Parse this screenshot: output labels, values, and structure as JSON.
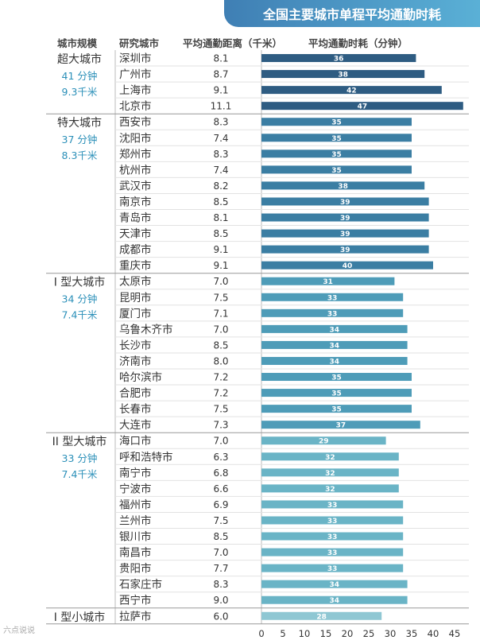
{
  "chart_data": {
    "type": "bar",
    "title": "全国主要城市单程平均通勤时耗",
    "columns": {
      "category": "城市规模",
      "city": "研究城市",
      "distance": "平均通勤距离（千米）",
      "time": "平均通勤时耗（分钟）"
    },
    "x_ticks": [
      0,
      5,
      10,
      15,
      20,
      25,
      30,
      35,
      40,
      45
    ],
    "xlim": [
      0,
      45
    ],
    "groups": [
      {
        "name": "超大城市",
        "avg_time": "41 分钟",
        "avg_distance": "9.3千米",
        "color": "#2e5c82",
        "cities": [
          {
            "name": "深圳市",
            "distance": "8.1",
            "time": 36
          },
          {
            "name": "广州市",
            "distance": "8.7",
            "time": 38
          },
          {
            "name": "上海市",
            "distance": "9.1",
            "time": 42
          },
          {
            "name": "北京市",
            "distance": "11.1",
            "time": 47
          }
        ]
      },
      {
        "name": "特大城市",
        "avg_time": "37 分钟",
        "avg_distance": "8.3千米",
        "color": "#3b7ea3",
        "cities": [
          {
            "name": "西安市",
            "distance": "8.3",
            "time": 35
          },
          {
            "name": "沈阳市",
            "distance": "7.4",
            "time": 35
          },
          {
            "name": "郑州市",
            "distance": "8.3",
            "time": 35
          },
          {
            "name": "杭州市",
            "distance": "7.4",
            "time": 35
          },
          {
            "name": "武汉市",
            "distance": "8.2",
            "time": 38
          },
          {
            "name": "南京市",
            "distance": "8.5",
            "time": 39
          },
          {
            "name": "青岛市",
            "distance": "8.1",
            "time": 39
          },
          {
            "name": "天津市",
            "distance": "8.5",
            "time": 39
          },
          {
            "name": "成都市",
            "distance": "9.1",
            "time": 39
          },
          {
            "name": "重庆市",
            "distance": "9.1",
            "time": 40
          }
        ]
      },
      {
        "name": "I 型大城市",
        "avg_time": "34 分钟",
        "avg_distance": "7.4千米",
        "color": "#4e9cb8",
        "cities": [
          {
            "name": "太原市",
            "distance": "7.0",
            "time": 31
          },
          {
            "name": "昆明市",
            "distance": "7.5",
            "time": 33
          },
          {
            "name": "厦门市",
            "distance": "7.1",
            "time": 33
          },
          {
            "name": "乌鲁木齐市",
            "distance": "7.0",
            "time": 34
          },
          {
            "name": "长沙市",
            "distance": "8.5",
            "time": 34
          },
          {
            "name": "济南市",
            "distance": "8.0",
            "time": 34
          },
          {
            "name": "哈尔滨市",
            "distance": "7.2",
            "time": 35
          },
          {
            "name": "合肥市",
            "distance": "7.2",
            "time": 35
          },
          {
            "name": "长春市",
            "distance": "7.5",
            "time": 35
          },
          {
            "name": "大连市",
            "distance": "7.3",
            "time": 37
          }
        ]
      },
      {
        "name": "II 型大城市",
        "avg_time": "33 分钟",
        "avg_distance": "7.4千米",
        "color": "#6ab4c6",
        "cities": [
          {
            "name": "海口市",
            "distance": "7.0",
            "time": 29
          },
          {
            "name": "呼和浩特市",
            "distance": "6.3",
            "time": 32
          },
          {
            "name": "南宁市",
            "distance": "6.8",
            "time": 32
          },
          {
            "name": "宁波市",
            "distance": "6.6",
            "time": 32
          },
          {
            "name": "福州市",
            "distance": "6.9",
            "time": 33
          },
          {
            "name": "兰州市",
            "distance": "7.5",
            "time": 33
          },
          {
            "name": "银川市",
            "distance": "8.5",
            "time": 33
          },
          {
            "name": "南昌市",
            "distance": "7.0",
            "time": 33
          },
          {
            "name": "贵阳市",
            "distance": "7.7",
            "time": 33
          },
          {
            "name": "石家庄市",
            "distance": "8.3",
            "time": 34
          },
          {
            "name": "西宁市",
            "distance": "9.0",
            "time": 34
          }
        ]
      },
      {
        "name": "I 型小城市",
        "avg_time": "",
        "avg_distance": "",
        "color": "#8fc7d3",
        "cities": [
          {
            "name": "拉萨市",
            "distance": "6.0",
            "time": 28
          }
        ]
      }
    ]
  },
  "watermark": "六点说说"
}
